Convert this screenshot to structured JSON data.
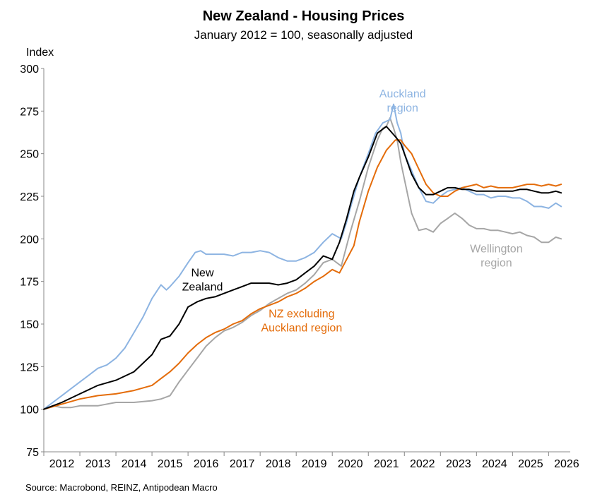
{
  "chart_data": {
    "type": "line",
    "title": "New Zealand - Housing Prices",
    "subtitle": "January 2012 = 100, seasonally adjusted",
    "ylabel": "Index",
    "xlabel": "",
    "source": "Source: Macrobond, REINZ, Antipodean Macro",
    "ylim": [
      75,
      300
    ],
    "yticks": [
      75,
      100,
      125,
      150,
      175,
      200,
      225,
      250,
      275,
      300
    ],
    "xlim": [
      2012,
      2026.6
    ],
    "xticks": [
      "2012",
      "2013",
      "2014",
      "2015",
      "2016",
      "2017",
      "2018",
      "2019",
      "2020",
      "2021",
      "2022",
      "2023",
      "2024",
      "2025",
      "2026"
    ],
    "grid": false,
    "legend": "inline labels",
    "series": [
      {
        "name": "Wellington region",
        "label_lines": [
          "Wellington",
          "region"
        ],
        "color": "#a6a6a6",
        "x": [
          2012.0,
          2012.25,
          2012.5,
          2012.75,
          2013.0,
          2013.5,
          2014.0,
          2014.5,
          2015.0,
          2015.25,
          2015.5,
          2015.75,
          2016.0,
          2016.25,
          2016.5,
          2016.75,
          2017.0,
          2017.25,
          2017.5,
          2017.75,
          2018.0,
          2018.25,
          2018.5,
          2018.75,
          2019.0,
          2019.25,
          2019.5,
          2019.75,
          2020.0,
          2020.25,
          2020.4,
          2020.5,
          2020.75,
          2021.0,
          2021.25,
          2021.4,
          2021.5,
          2021.6,
          2021.7,
          2021.8,
          2021.9,
          2022.0,
          2022.2,
          2022.4,
          2022.6,
          2022.8,
          2023.0,
          2023.2,
          2023.4,
          2023.6,
          2023.8,
          2024.0,
          2024.2,
          2024.4,
          2024.6,
          2024.8,
          2025.0,
          2025.2,
          2025.4,
          2025.6,
          2025.8,
          2026.0,
          2026.2,
          2026.35
        ],
        "values": [
          100,
          102,
          101,
          101,
          102,
          102,
          104,
          104,
          105,
          106,
          108,
          116,
          123,
          130,
          137,
          142,
          146,
          148,
          151,
          155,
          158,
          162,
          165,
          168,
          170,
          174,
          179,
          186,
          188,
          184,
          196,
          204,
          222,
          242,
          258,
          265,
          266,
          271,
          265,
          258,
          245,
          235,
          215,
          205,
          206,
          204,
          209,
          212,
          215,
          212,
          208,
          206,
          206,
          205,
          205,
          204,
          203,
          204,
          202,
          201,
          198,
          198,
          201,
          200
        ]
      },
      {
        "name": "Auckland region",
        "label_lines": [
          "Auckland",
          "region"
        ],
        "color": "#8db4e2",
        "x": [
          2012.0,
          2012.25,
          2012.5,
          2012.75,
          2013.0,
          2013.25,
          2013.5,
          2013.75,
          2014.0,
          2014.25,
          2014.5,
          2014.75,
          2015.0,
          2015.25,
          2015.4,
          2015.5,
          2015.75,
          2016.0,
          2016.2,
          2016.35,
          2016.5,
          2016.75,
          2017.0,
          2017.25,
          2017.5,
          2017.75,
          2018.0,
          2018.25,
          2018.5,
          2018.75,
          2019.0,
          2019.25,
          2019.5,
          2019.75,
          2020.0,
          2020.25,
          2020.4,
          2020.5,
          2020.75,
          2021.0,
          2021.2,
          2021.4,
          2021.6,
          2021.7,
          2021.8,
          2021.9,
          2022.0,
          2022.2,
          2022.4,
          2022.6,
          2022.8,
          2023.0,
          2023.2,
          2023.4,
          2023.6,
          2023.8,
          2024.0,
          2024.2,
          2024.4,
          2024.6,
          2024.8,
          2025.0,
          2025.2,
          2025.4,
          2025.6,
          2025.8,
          2026.0,
          2026.2,
          2026.35
        ],
        "values": [
          100,
          104,
          108,
          112,
          116,
          120,
          124,
          126,
          130,
          136,
          145,
          154,
          165,
          173,
          170,
          172,
          178,
          186,
          192,
          193,
          191,
          191,
          191,
          190,
          192,
          192,
          193,
          192,
          189,
          187,
          187,
          189,
          192,
          198,
          203,
          200,
          210,
          218,
          236,
          250,
          262,
          268,
          270,
          279,
          268,
          262,
          250,
          240,
          230,
          222,
          221,
          225,
          228,
          229,
          230,
          228,
          226,
          226,
          224,
          225,
          225,
          224,
          224,
          222,
          219,
          219,
          218,
          221,
          219
        ]
      },
      {
        "name": "NZ excluding Auckland region",
        "label_lines": [
          "NZ excluding",
          "Auckland region"
        ],
        "color": "#e46c0a",
        "x": [
          2012.0,
          2012.5,
          2013.0,
          2013.5,
          2014.0,
          2014.5,
          2015.0,
          2015.25,
          2015.5,
          2015.75,
          2016.0,
          2016.25,
          2016.5,
          2016.75,
          2017.0,
          2017.25,
          2017.5,
          2017.75,
          2018.0,
          2018.25,
          2018.5,
          2018.75,
          2019.0,
          2019.25,
          2019.5,
          2019.75,
          2020.0,
          2020.2,
          2020.4,
          2020.6,
          2020.75,
          2021.0,
          2021.25,
          2021.5,
          2021.75,
          2021.9,
          2022.0,
          2022.2,
          2022.4,
          2022.6,
          2022.8,
          2023.0,
          2023.2,
          2023.4,
          2023.6,
          2023.8,
          2024.0,
          2024.2,
          2024.4,
          2024.6,
          2024.8,
          2025.0,
          2025.2,
          2025.4,
          2025.6,
          2025.8,
          2026.0,
          2026.2,
          2026.35
        ],
        "values": [
          100,
          103,
          106,
          108,
          109,
          111,
          114,
          118,
          122,
          127,
          133,
          138,
          142,
          145,
          147,
          150,
          152,
          156,
          159,
          161,
          163,
          166,
          168,
          171,
          175,
          178,
          182,
          180,
          188,
          196,
          210,
          228,
          242,
          252,
          258,
          258,
          255,
          250,
          241,
          232,
          227,
          225,
          225,
          228,
          230,
          231,
          232,
          230,
          231,
          230,
          230,
          230,
          231,
          232,
          232,
          231,
          232,
          231,
          232
        ]
      },
      {
        "name": "New Zealand",
        "label_lines": [
          "New",
          "Zealand"
        ],
        "color": "#000000",
        "x": [
          2012.0,
          2012.5,
          2013.0,
          2013.5,
          2014.0,
          2014.5,
          2015.0,
          2015.25,
          2015.5,
          2015.75,
          2016.0,
          2016.25,
          2016.5,
          2016.75,
          2017.0,
          2017.25,
          2017.5,
          2017.75,
          2018.0,
          2018.25,
          2018.5,
          2018.75,
          2019.0,
          2019.25,
          2019.5,
          2019.75,
          2020.0,
          2020.2,
          2020.4,
          2020.6,
          2020.75,
          2021.0,
          2021.25,
          2021.5,
          2021.75,
          2021.9,
          2022.0,
          2022.2,
          2022.4,
          2022.6,
          2022.8,
          2023.0,
          2023.2,
          2023.4,
          2023.6,
          2023.8,
          2024.0,
          2024.2,
          2024.4,
          2024.6,
          2024.8,
          2025.0,
          2025.2,
          2025.4,
          2025.6,
          2025.8,
          2026.0,
          2026.2,
          2026.35
        ],
        "values": [
          100,
          104,
          109,
          114,
          117,
          122,
          132,
          141,
          143,
          150,
          160,
          163,
          165,
          166,
          168,
          170,
          172,
          174,
          174,
          174,
          173,
          174,
          176,
          180,
          184,
          190,
          188,
          198,
          212,
          228,
          236,
          248,
          262,
          266,
          260,
          256,
          250,
          238,
          230,
          226,
          226,
          228,
          230,
          230,
          229,
          229,
          228,
          228,
          228,
          228,
          228,
          228,
          229,
          229,
          228,
          227,
          227,
          228,
          227
        ]
      }
    ]
  }
}
